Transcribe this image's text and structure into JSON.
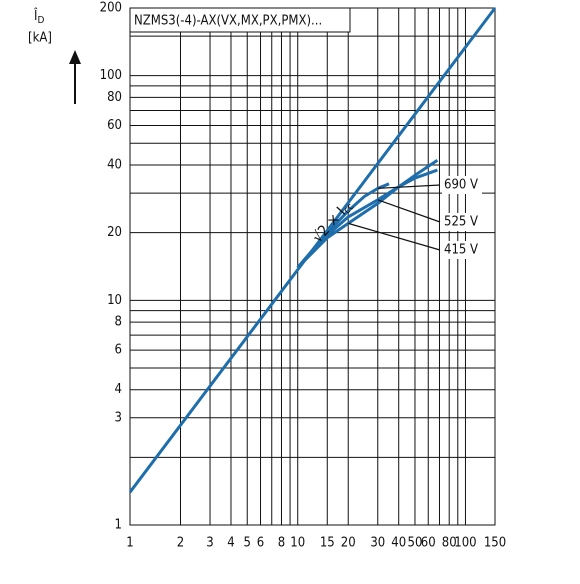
{
  "chart_data": {
    "type": "line",
    "title": "NZMS3(-4)-AX(VX,MX,PX,PMX)...",
    "y_label": "Î",
    "y_label_sub": "D",
    "y_unit": "[kA]",
    "log_x": true,
    "log_y": true,
    "grid": true,
    "xlim": [
      1,
      150
    ],
    "ylim": [
      1,
      200
    ],
    "xticks": [
      1,
      2,
      3,
      4,
      5,
      6,
      8,
      10,
      15,
      20,
      30,
      40,
      50,
      60,
      80,
      100,
      150
    ],
    "xminor": [
      7,
      9,
      70,
      90
    ],
    "yticks": [
      1,
      3,
      4,
      6,
      8,
      10,
      20,
      40,
      60,
      80,
      100,
      200
    ],
    "yminor": [
      2,
      5,
      7,
      9,
      30,
      50,
      70,
      90,
      150
    ],
    "series": [
      {
        "name": "√2 × I",
        "name_sub": "cc",
        "color": "#1f6eac",
        "x": [
          1,
          150
        ],
        "values": [
          1.4,
          200
        ]
      },
      {
        "name": "690 V",
        "color": "#1f6eac",
        "x": [
          10,
          15,
          20,
          25,
          30,
          35
        ],
        "values": [
          14,
          20,
          25,
          29,
          31.5,
          33
        ]
      },
      {
        "name": "525 V",
        "color": "#1f6eac",
        "x": [
          10,
          15,
          20,
          30,
          40,
          50,
          68
        ],
        "values": [
          14,
          19.5,
          23.5,
          28,
          32,
          35,
          38
        ]
      },
      {
        "name": "415 V",
        "color": "#1f6eac",
        "x": [
          10,
          15,
          20,
          30,
          40,
          50,
          68
        ],
        "values": [
          14,
          19,
          22,
          27,
          32,
          36,
          42
        ]
      }
    ]
  }
}
